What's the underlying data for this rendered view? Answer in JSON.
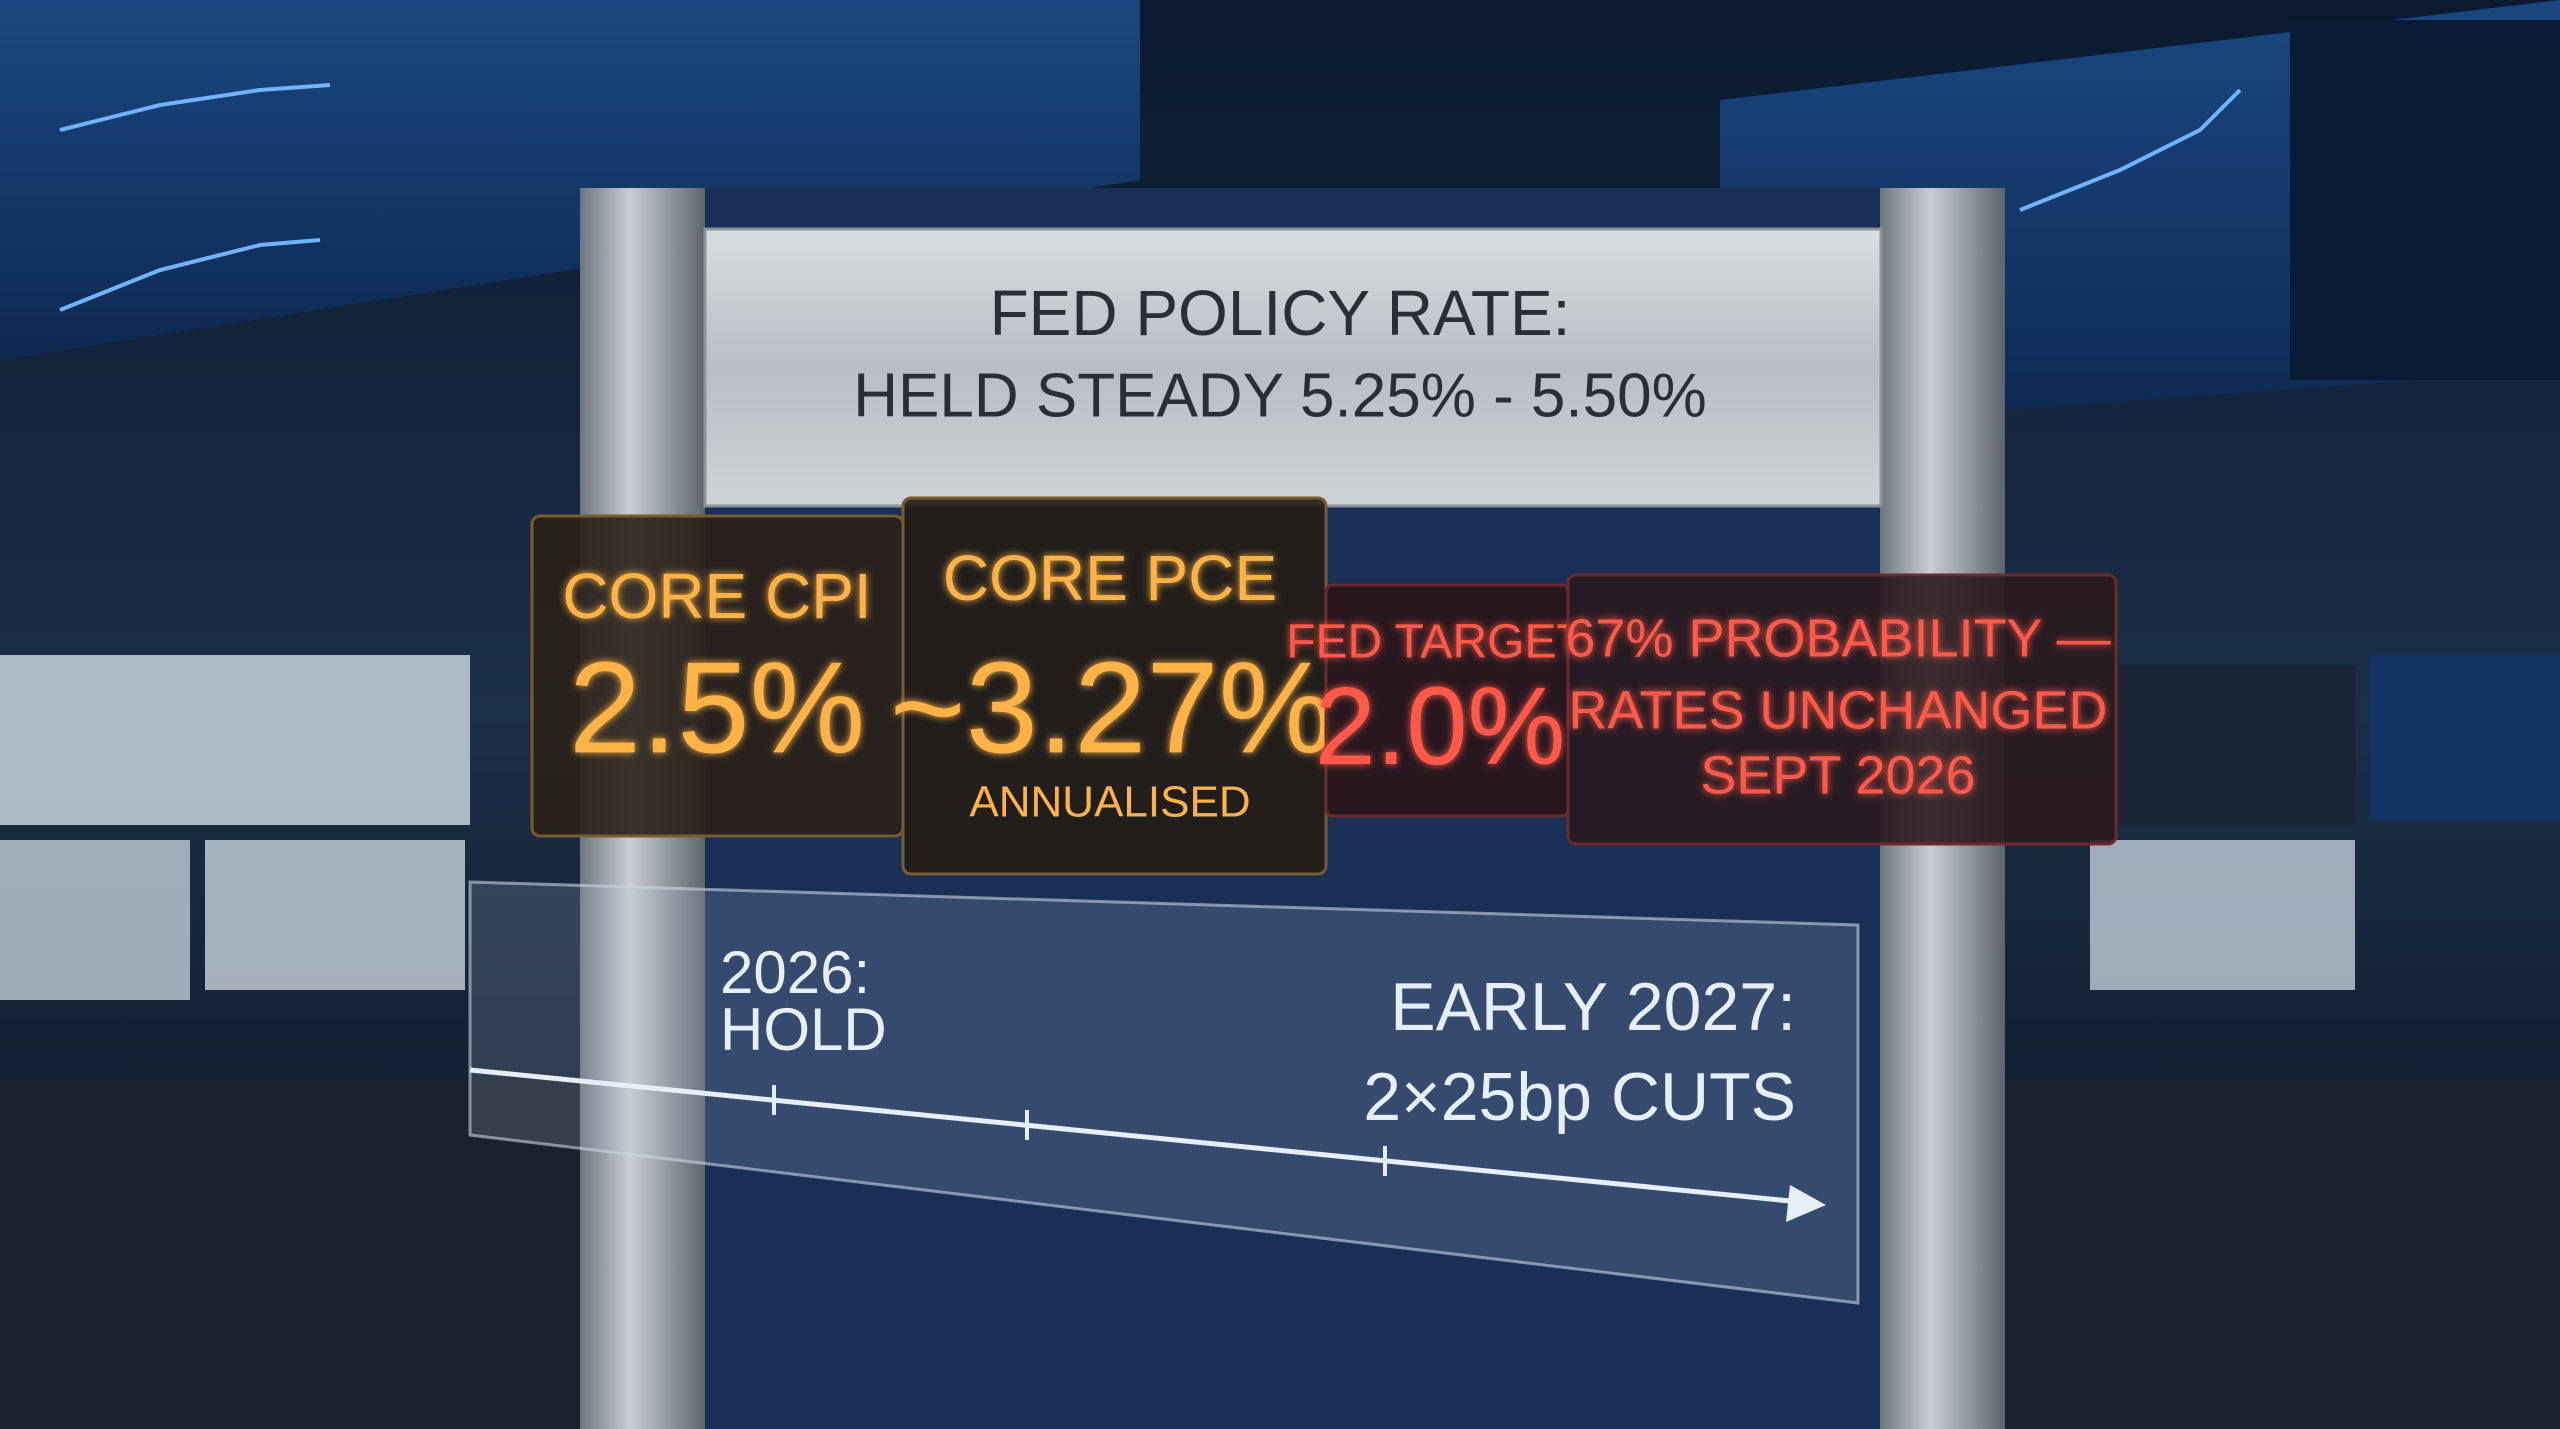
{
  "header": {
    "line1": "FED POLICY RATE:",
    "line2": "HELD STEADY 5.25% - 5.50%"
  },
  "panels": [
    {
      "label": "CORE CPI",
      "value": "2.5%"
    },
    {
      "label": "CORE PCE",
      "value": "~3.27%",
      "note": "ANNUALISED"
    },
    {
      "label": "FED TARGET:",
      "value": "2.0%"
    },
    {
      "lines": [
        "67% PROBABILITY —",
        "RATES UNCHANGED",
        "SEPT 2026"
      ]
    }
  ],
  "timeline": {
    "start": [
      "2026:",
      "HOLD"
    ],
    "end": [
      "EARLY 2027:",
      "2×25bp CUTS"
    ]
  }
}
